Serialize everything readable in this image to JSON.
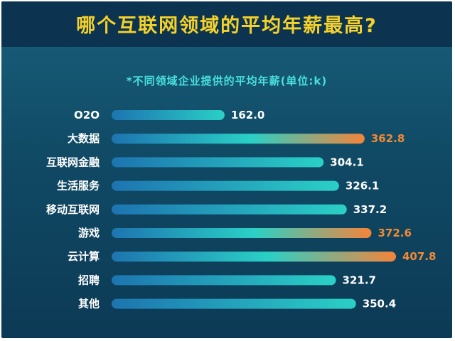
{
  "colors": {
    "title": "#f5d12a",
    "subtitle": "#48e0dc",
    "label": "#ffffff",
    "highlight": "#f28a35",
    "bar_start": "#1d74b0",
    "bar_end": "#2ad0c6",
    "bar_hot_end": "#f4843a"
  },
  "chart_data": {
    "type": "bar",
    "orientation": "horizontal",
    "title": "哪个互联网领域的平均年薪最高?",
    "subtitle": "*不同领域企业提供的平均年薪(单位:k)",
    "categories": [
      "O2O",
      "大数据",
      "互联网金融",
      "生活服务",
      "移动互联网",
      "游戏",
      "云计算",
      "招聘",
      "其他"
    ],
    "values": [
      162.0,
      362.8,
      304.1,
      326.1,
      337.2,
      372.6,
      407.8,
      321.7,
      350.4
    ],
    "value_labels": [
      "162.0",
      "362.8",
      "304.1",
      "326.1",
      "337.2",
      "372.6",
      "407.8",
      "321.7",
      "350.4"
    ],
    "highlighted": [
      "大数据",
      "游戏",
      "云计算"
    ],
    "xlim": [
      0,
      407.8
    ],
    "grid": false,
    "legend": "none"
  }
}
